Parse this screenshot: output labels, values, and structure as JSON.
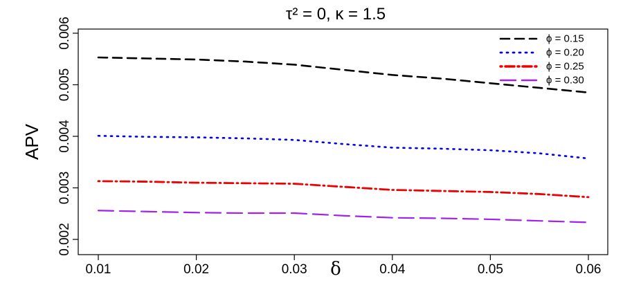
{
  "chart_data": {
    "type": "line",
    "title": "τ² = 0,  κ = 1.5",
    "xlabel": "δ",
    "ylabel": "APV",
    "xlim": [
      0.01,
      0.06
    ],
    "ylim": [
      0.002,
      0.006
    ],
    "x_ticks": [
      "0.01",
      "0.02",
      "0.03",
      "0.04",
      "0.05",
      "0.06"
    ],
    "y_ticks": [
      "0.002",
      "0.003",
      "0.004",
      "0.005",
      "0.006"
    ],
    "legend_position": "top-right",
    "grid": false,
    "x": [
      0.01,
      0.015,
      0.02,
      0.025,
      0.03,
      0.035,
      0.04,
      0.045,
      0.05,
      0.055,
      0.06
    ],
    "series": [
      {
        "name": "ϕ = 0.15",
        "color": "#000000",
        "dash": "dashed",
        "values": [
          0.00553,
          0.00551,
          0.00549,
          0.00545,
          0.00539,
          0.00529,
          0.00519,
          0.00512,
          0.00503,
          0.00494,
          0.00485
        ]
      },
      {
        "name": "ϕ = 0.20",
        "color": "#0000ee",
        "dash": "dotted",
        "values": [
          0.00401,
          0.00399,
          0.00398,
          0.00396,
          0.00393,
          0.00385,
          0.00378,
          0.00376,
          0.00373,
          0.00367,
          0.00357
        ]
      },
      {
        "name": "ϕ = 0.25",
        "color": "#ee0000",
        "dash": "dotdash",
        "values": [
          0.00313,
          0.00312,
          0.0031,
          0.00309,
          0.00308,
          0.00302,
          0.00296,
          0.00294,
          0.00292,
          0.00288,
          0.00282
        ]
      },
      {
        "name": "ϕ = 0.30",
        "color": "#a020f0",
        "dash": "longdash",
        "values": [
          0.00256,
          0.00254,
          0.00252,
          0.00251,
          0.00251,
          0.00246,
          0.00242,
          0.00241,
          0.00239,
          0.00236,
          0.00233
        ]
      }
    ]
  }
}
